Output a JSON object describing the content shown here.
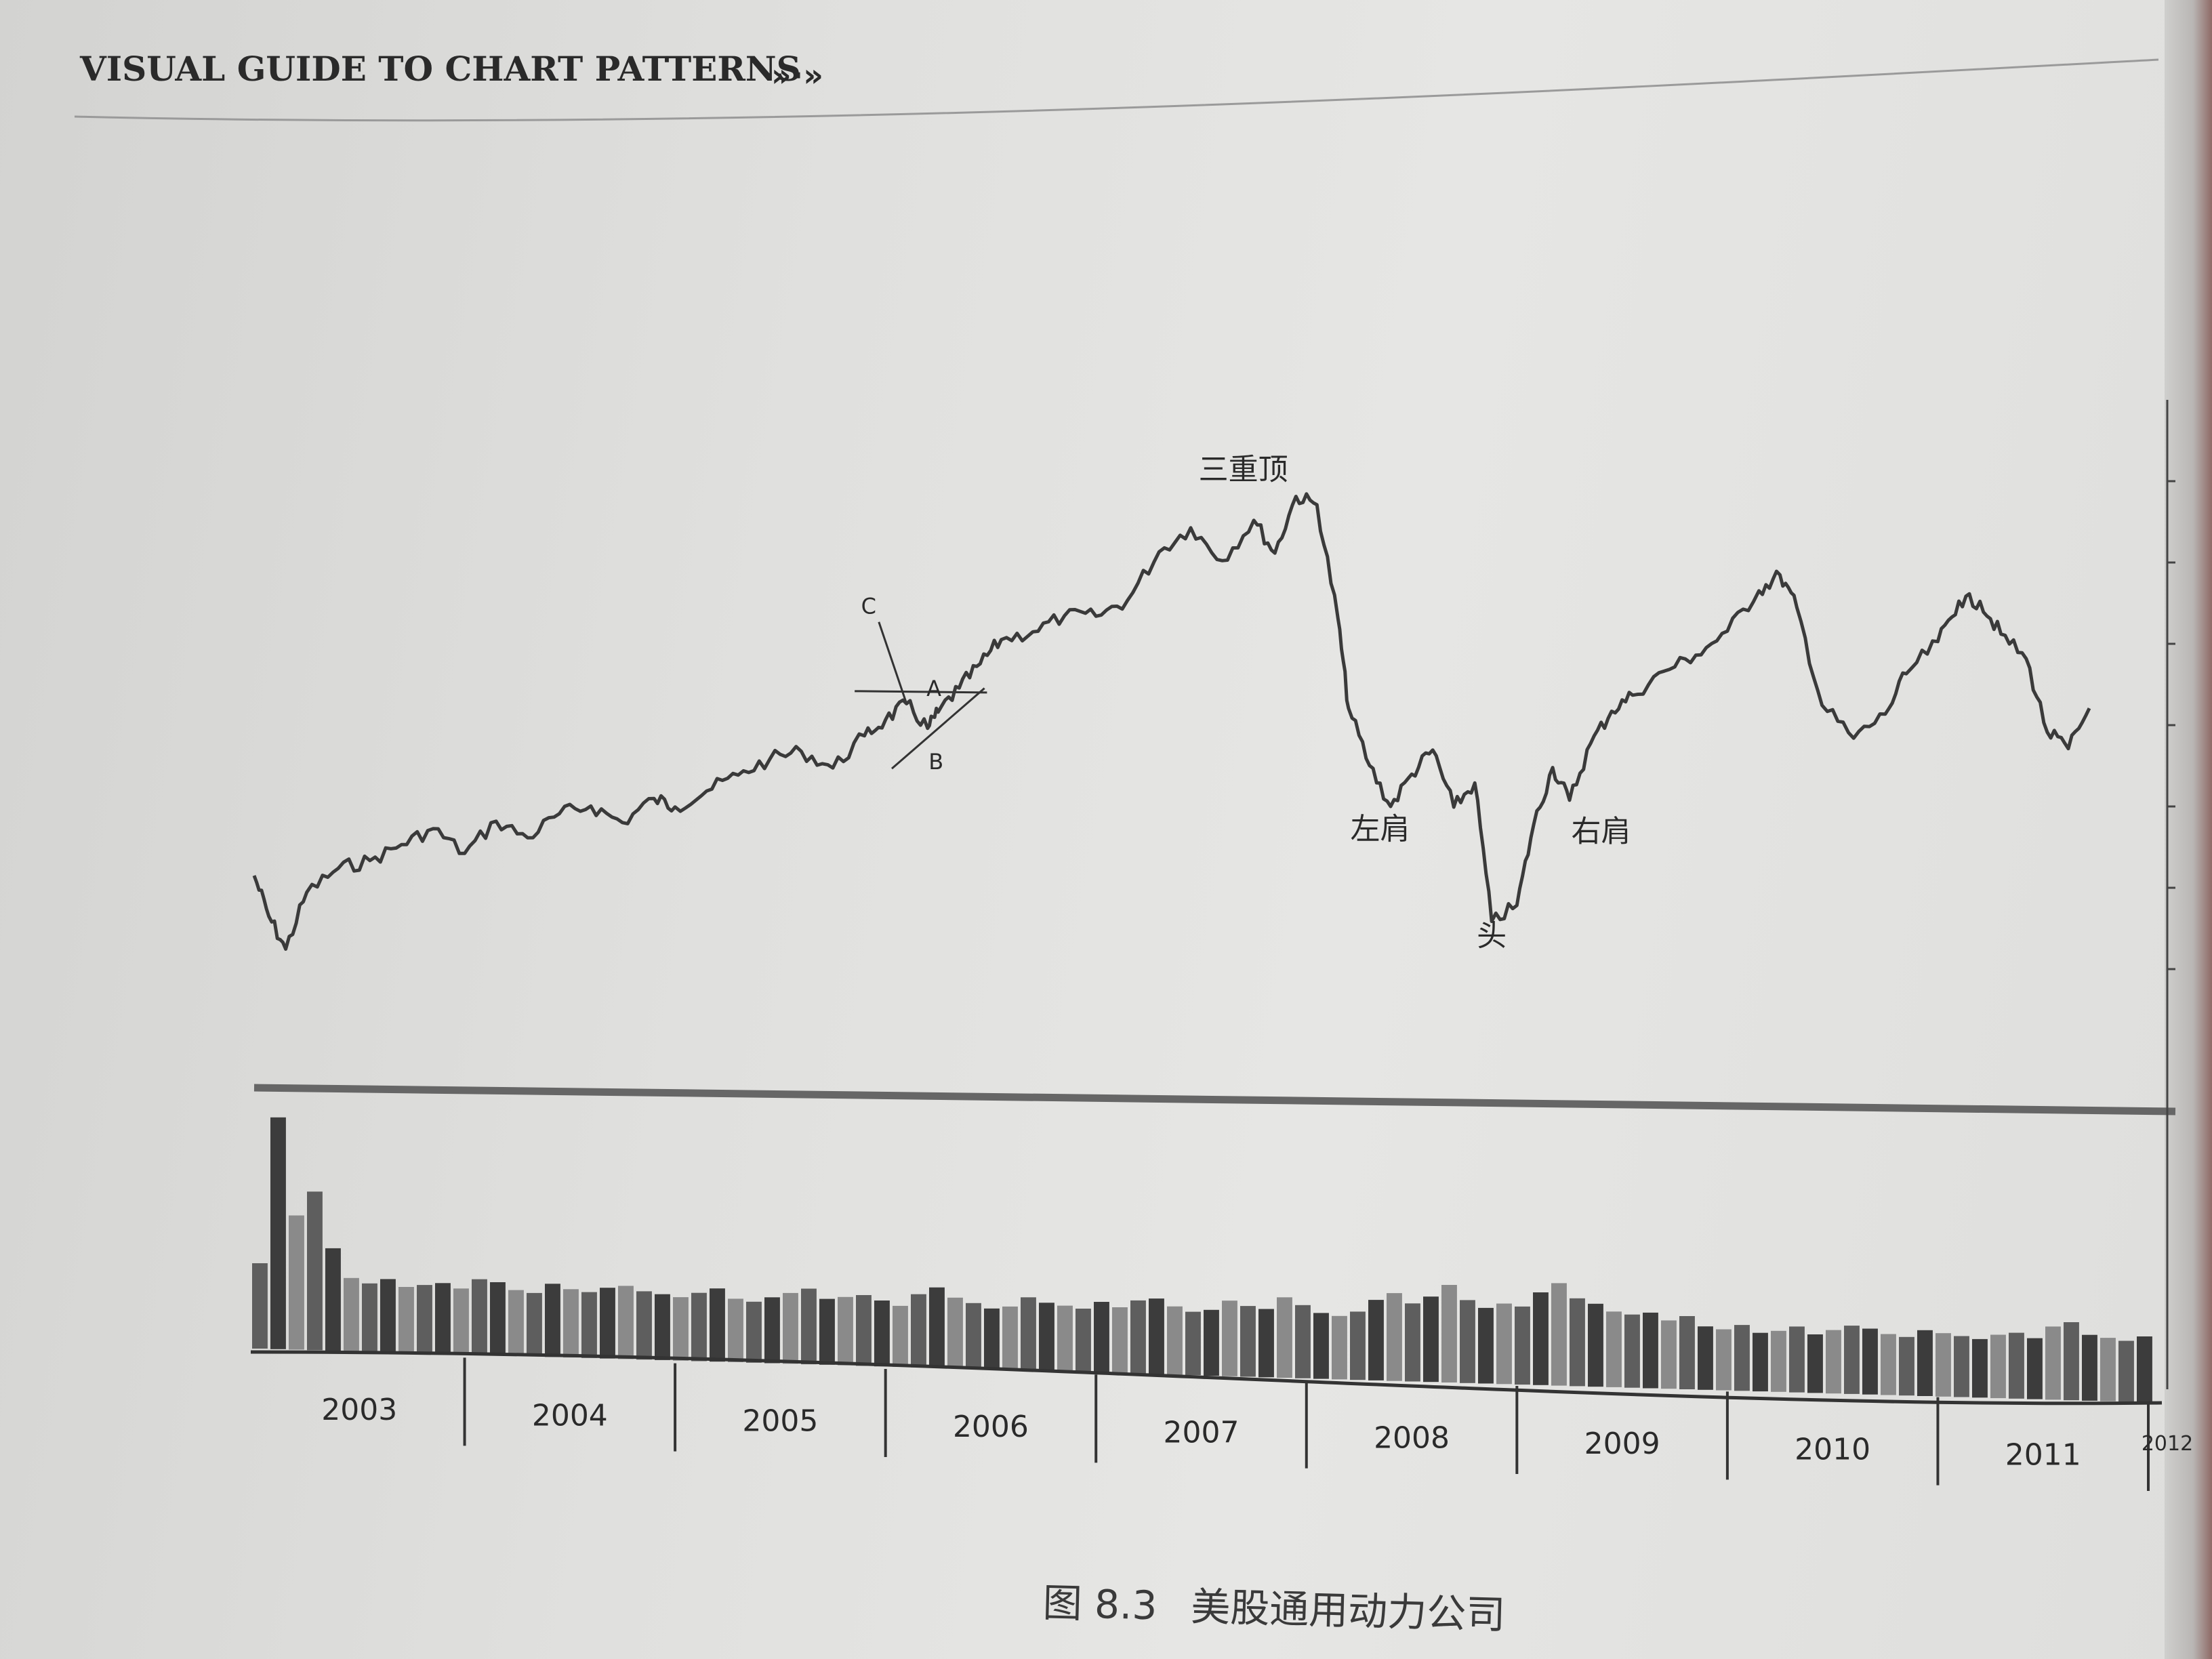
{
  "running_head": {
    "title": "VISUAL GUIDE TO CHART PATTERNS",
    "arrows": "»·»"
  },
  "caption": {
    "figure_number": "图 8.3",
    "title": "美股通用动力公司"
  },
  "chart_data": {
    "type": "line",
    "title": "",
    "xlabel": "",
    "ylabel": "",
    "x_ticks": [
      "2003",
      "2004",
      "2005",
      "2006",
      "2007",
      "2008",
      "2009",
      "2010",
      "2011",
      "2012"
    ],
    "ylim": [
      20,
      100
    ],
    "y_tick_values": [
      30,
      40,
      50,
      60,
      70,
      80,
      90
    ],
    "series": [
      {
        "x": [
          2003.0,
          2003.07,
          2003.15,
          2003.25,
          2003.4,
          2003.55,
          2003.7,
          2003.85,
          2004.0,
          2004.15,
          2004.3,
          2004.45,
          2004.6,
          2004.75,
          2004.9,
          2005.0,
          2005.15,
          2005.3,
          2005.45,
          2005.6,
          2005.75,
          2005.9,
          2006.0,
          2006.1,
          2006.2,
          2006.25,
          2006.35,
          2006.45,
          2006.55,
          2006.7,
          2006.85,
          2007.0,
          2007.15,
          2007.3,
          2007.45,
          2007.6,
          2007.75,
          2007.85,
          2007.95,
          2008.05,
          2008.15,
          2008.2,
          2008.3,
          2008.4,
          2008.5,
          2008.6,
          2008.7,
          2008.8,
          2008.88,
          2009.0,
          2009.08,
          2009.17,
          2009.25,
          2009.35,
          2009.45,
          2009.55,
          2009.7,
          2009.85,
          2010.0,
          2010.15,
          2010.25,
          2010.33,
          2010.45,
          2010.6,
          2010.75,
          2010.85,
          2011.0,
          2011.1,
          2011.2,
          2011.3,
          2011.42,
          2011.52,
          2011.62,
          2011.72
        ],
        "y": [
          39,
          34,
          30,
          37,
          40,
          41,
          43,
          45,
          42,
          46,
          44,
          47,
          48,
          46,
          49,
          48,
          50,
          52,
          54,
          55,
          53,
          57,
          59,
          61,
          58,
          60,
          63,
          66,
          69,
          70,
          72,
          72,
          74,
          80,
          83,
          79,
          84,
          80,
          87,
          86,
          72,
          61,
          54,
          49,
          53,
          56,
          49,
          52,
          35,
          37,
          47,
          54,
          50,
          57,
          61,
          63,
          66,
          68,
          71,
          76,
          78,
          74,
          62,
          58,
          61,
          66,
          70,
          75,
          75,
          71,
          68,
          59,
          57,
          62
        ]
      }
    ],
    "annotations": [
      {
        "text": "三重顶",
        "x": 2007.7,
        "y": 89
      },
      {
        "text": "左肩",
        "x": 2008.35,
        "y": 45
      },
      {
        "text": "头",
        "x": 2008.88,
        "y": 32
      },
      {
        "text": "右肩",
        "x": 2009.4,
        "y": 45
      },
      {
        "text": "A",
        "x": 2006.23,
        "y": 62
      },
      {
        "text": "B",
        "x": 2006.24,
        "y": 53
      },
      {
        "text": "C",
        "x": 2005.92,
        "y": 72
      }
    ],
    "volume": {
      "label": "",
      "relative_values": [
        0.35,
        0.95,
        0.55,
        0.65,
        0.42,
        0.3,
        0.28,
        0.3,
        0.27,
        0.28,
        0.29,
        0.27,
        0.31,
        0.3,
        0.27,
        0.26,
        0.3,
        0.28,
        0.27,
        0.29,
        0.3,
        0.28,
        0.27,
        0.26,
        0.28,
        0.3,
        0.26,
        0.25,
        0.27,
        0.29,
        0.31,
        0.27,
        0.28,
        0.29,
        0.27,
        0.25,
        0.3,
        0.33,
        0.29,
        0.27,
        0.25,
        0.26,
        0.3,
        0.28,
        0.27,
        0.26,
        0.29,
        0.27,
        0.3,
        0.31,
        0.28,
        0.26,
        0.27,
        0.31,
        0.29,
        0.28,
        0.33,
        0.3,
        0.27,
        0.26,
        0.28,
        0.33,
        0.36,
        0.32,
        0.35,
        0.4,
        0.34,
        0.31,
        0.33,
        0.32,
        0.38,
        0.42,
        0.36,
        0.34,
        0.31,
        0.3,
        0.31,
        0.28,
        0.3,
        0.26,
        0.25,
        0.27,
        0.24,
        0.25,
        0.27,
        0.24,
        0.26,
        0.28,
        0.27,
        0.25,
        0.24,
        0.27,
        0.26,
        0.25,
        0.24,
        0.26,
        0.27,
        0.25,
        0.3,
        0.32,
        0.27,
        0.26,
        0.25,
        0.27
      ]
    }
  }
}
